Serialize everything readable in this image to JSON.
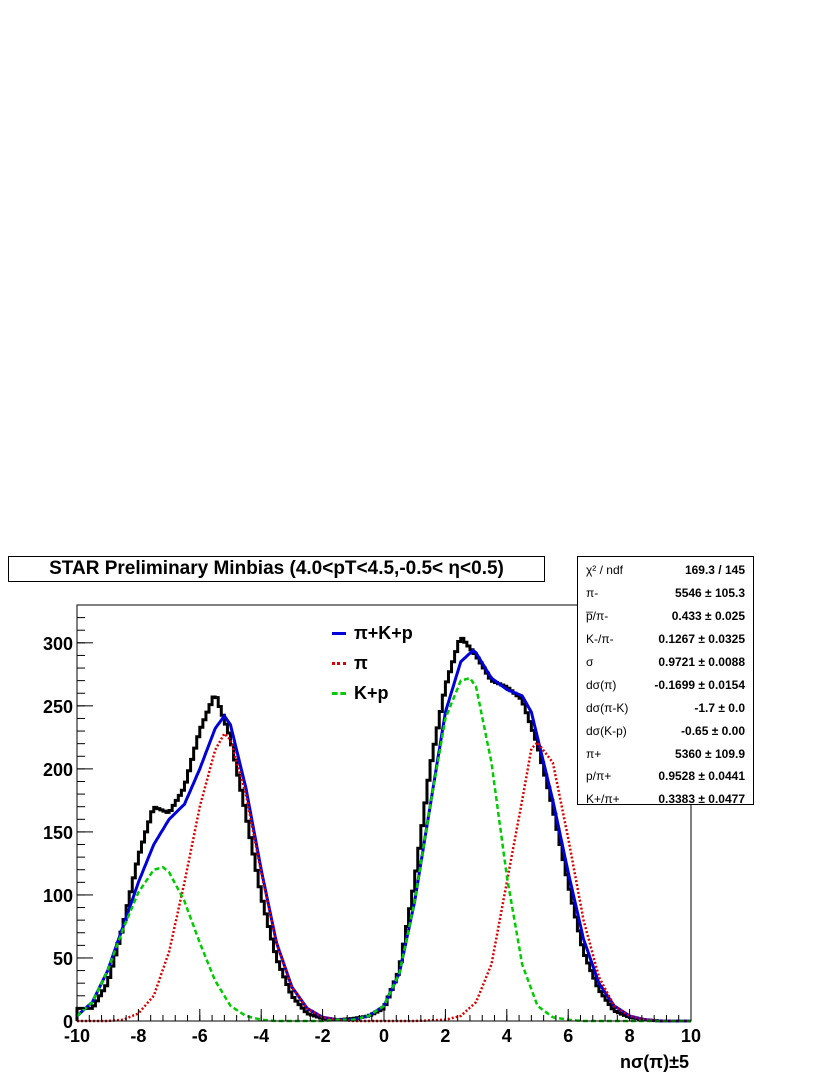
{
  "chart_data": {
    "type": "histogram",
    "title": "STAR Preliminary Minbias (4.0<pT<4.5,-0.5< η<0.5)",
    "xlabel": "nσ(π)±5",
    "ylabel": "",
    "xlim": [
      -10,
      10
    ],
    "ylim": [
      0,
      330
    ],
    "xticks": [
      -10,
      -8,
      -6,
      -4,
      -2,
      0,
      2,
      4,
      6,
      8,
      10
    ],
    "yticks": [
      0,
      50,
      100,
      150,
      200,
      250,
      300
    ],
    "bin_width": 0.1,
    "data": {
      "name": "data",
      "color": "#000000",
      "x": [
        -9.5,
        -9.0,
        -8.5,
        -8.0,
        -7.5,
        -7.0,
        -6.5,
        -6.0,
        -5.5,
        -5.0,
        -4.5,
        -4.0,
        -3.5,
        -3.0,
        -2.5,
        -2.0,
        -1.5,
        -1.0,
        -0.5,
        0.0,
        0.5,
        1.0,
        1.5,
        2.0,
        2.5,
        3.0,
        3.5,
        4.0,
        4.5,
        5.0,
        5.5,
        6.0,
        6.5,
        7.0,
        7.5,
        8.0,
        8.5,
        9.0
      ],
      "y": [
        10,
        30,
        75,
        130,
        170,
        165,
        185,
        230,
        260,
        225,
        165,
        100,
        50,
        20,
        6,
        2,
        1,
        2,
        4,
        10,
        40,
        110,
        200,
        265,
        305,
        290,
        270,
        265,
        255,
        220,
        170,
        110,
        55,
        25,
        8,
        3,
        1,
        0
      ]
    },
    "series": [
      {
        "name": "π+K+p",
        "color": "#0000dd",
        "x": [
          -10,
          -9.5,
          -9.0,
          -8.5,
          -8.0,
          -7.5,
          -7.0,
          -6.5,
          -6.0,
          -5.5,
          -5.2,
          -5.0,
          -4.5,
          -4.0,
          -3.5,
          -3.0,
          -2.5,
          -2.0,
          -1.5,
          -1.0,
          -0.5,
          0.0,
          0.5,
          1.0,
          1.5,
          2.0,
          2.5,
          2.9,
          3.0,
          3.5,
          4.0,
          4.5,
          4.8,
          5.0,
          5.5,
          6.0,
          6.5,
          7.0,
          7.5,
          8.0,
          8.5,
          9.0,
          9.5,
          10
        ],
        "y": [
          4,
          15,
          40,
          75,
          110,
          140,
          160,
          172,
          200,
          232,
          242,
          235,
          185,
          120,
          62,
          27,
          10,
          3,
          1,
          1,
          4,
          12,
          38,
          95,
          170,
          245,
          285,
          294,
          292,
          272,
          263,
          258,
          245,
          225,
          175,
          118,
          65,
          30,
          12,
          4,
          1,
          0,
          0,
          0
        ]
      },
      {
        "name": "π",
        "color": "#dd0000",
        "x": [
          -10,
          -9.0,
          -8.5,
          -8.0,
          -7.5,
          -7.0,
          -6.5,
          -6.0,
          -5.5,
          -5.2,
          -5.0,
          -4.5,
          -4.0,
          -3.5,
          -3.0,
          -2.5,
          -2.0,
          -1.5,
          -1.0,
          0.0,
          1.0,
          2.0,
          2.5,
          3.0,
          3.5,
          4.0,
          4.5,
          4.8,
          5.0,
          5.5,
          6.0,
          6.5,
          7.0,
          7.5,
          8.0,
          8.5,
          9.0,
          10
        ],
        "y": [
          0,
          0,
          1,
          6,
          20,
          55,
          110,
          170,
          215,
          228,
          223,
          180,
          118,
          62,
          27,
          10,
          3,
          1,
          0,
          0,
          0,
          1,
          4,
          15,
          45,
          110,
          175,
          216,
          221,
          205,
          145,
          80,
          35,
          12,
          4,
          1,
          0,
          0
        ]
      },
      {
        "name": "K+p",
        "color": "#00cc00",
        "x": [
          -10,
          -9.5,
          -9.0,
          -8.5,
          -8.0,
          -7.5,
          -7.2,
          -7.0,
          -6.5,
          -6.0,
          -5.5,
          -5.0,
          -4.5,
          -4.0,
          -3.5,
          -3.0,
          -2.5,
          -2.0,
          -1.5,
          -1.0,
          -0.5,
          0.0,
          0.5,
          1.0,
          1.5,
          2.0,
          2.5,
          2.8,
          3.0,
          3.5,
          4.0,
          4.5,
          5.0,
          5.5,
          6.0,
          6.5,
          7.0,
          8.0,
          10
        ],
        "y": [
          4,
          15,
          40,
          73,
          102,
          120,
          122,
          118,
          95,
          62,
          32,
          12,
          4,
          1,
          0,
          0,
          0,
          0,
          1,
          1,
          4,
          12,
          38,
          95,
          170,
          240,
          270,
          272,
          265,
          205,
          115,
          45,
          12,
          3,
          1,
          0,
          0,
          0,
          0
        ]
      }
    ],
    "stats": [
      {
        "name": "χ² / ndf",
        "value": "169.3 / 145"
      },
      {
        "name": "π-",
        "value": "5546 ± 105.3"
      },
      {
        "name": "p̅/π-",
        "value": "0.433 ± 0.025"
      },
      {
        "name": "K-/π-",
        "value": "0.1267 ± 0.0325"
      },
      {
        "name": "σ",
        "value": "0.9721 ± 0.0088"
      },
      {
        "name": "dσ(π)",
        "value": "-0.1699 ± 0.0154"
      },
      {
        "name": "dσ(π-K)",
        "value": "-1.7 ± 0.0"
      },
      {
        "name": "dσ(K-p)",
        "value": "-0.65 ± 0.00"
      },
      {
        "name": "π+",
        "value": "5360 ± 109.9"
      },
      {
        "name": "p/π+",
        "value": "0.9528 ± 0.0441"
      },
      {
        "name": "K+/π+",
        "value": "0.3383 ± 0.0477"
      }
    ],
    "legend": [
      {
        "name": "π+K+p",
        "color": "#0000dd",
        "style": "solid"
      },
      {
        "name": "π",
        "color": "#dd0000",
        "style": "dotted"
      },
      {
        "name": "K+p",
        "color": "#00cc00",
        "style": "dashed"
      }
    ],
    "grid": false,
    "legend_position": "top-center"
  }
}
